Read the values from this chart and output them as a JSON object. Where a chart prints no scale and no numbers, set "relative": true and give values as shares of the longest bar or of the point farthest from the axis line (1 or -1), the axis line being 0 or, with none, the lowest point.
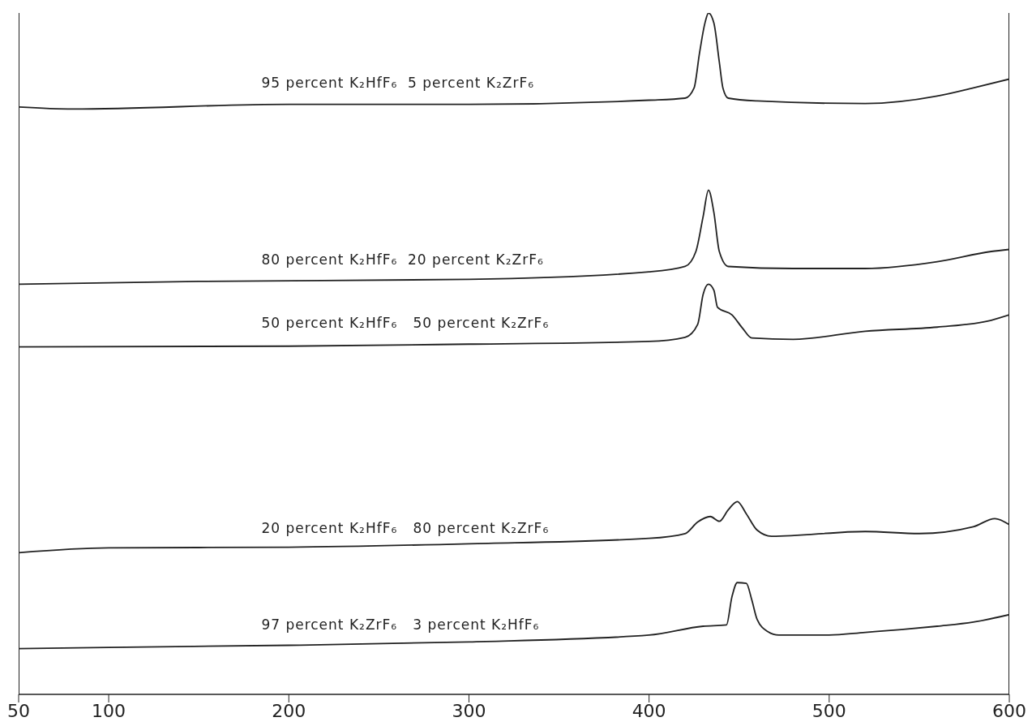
{
  "chart_data": {
    "type": "line",
    "relative": true,
    "xlim": [
      50,
      600
    ],
    "xticks": [
      50,
      100,
      200,
      300,
      400,
      500,
      600
    ],
    "marker": "none",
    "line_style": "solid",
    "series": [
      {
        "name": "95 percent K₂HfF₆  5 percent K₂ZrF₆",
        "color": "#222222",
        "x": [
          50,
          80,
          200,
          300,
          400,
          420,
          425,
          428,
          431,
          433,
          436,
          439,
          441,
          444,
          460,
          520,
          560,
          580,
          600
        ],
        "values": [
          0.862,
          0.859,
          0.866,
          0.866,
          0.872,
          0.875,
          0.89,
          0.941,
          0.985,
          1,
          0.985,
          0.928,
          0.89,
          0.875,
          0.871,
          0.867,
          0.878,
          0.89,
          0.903
        ]
      },
      {
        "name": "80 percent K₂HfF₆  20 percent K₂ZrF₆",
        "color": "#222222",
        "x": [
          50,
          150,
          300,
          400,
          420,
          426,
          430,
          433,
          436,
          439,
          444,
          480,
          520,
          560,
          590,
          600
        ],
        "values": [
          0.602,
          0.606,
          0.609,
          0.62,
          0.628,
          0.65,
          0.701,
          0.74,
          0.707,
          0.65,
          0.628,
          0.625,
          0.625,
          0.635,
          0.65,
          0.653
        ]
      },
      {
        "name": "50 percent K₂HfF₆   50 percent K₂ZrF₆",
        "color": "#222222",
        "x": [
          50,
          200,
          300,
          400,
          420,
          427,
          430,
          433,
          436,
          438,
          446,
          452,
          457,
          480,
          520,
          560,
          590,
          600
        ],
        "values": [
          0.51,
          0.511,
          0.514,
          0.518,
          0.524,
          0.543,
          0.587,
          0.602,
          0.593,
          0.568,
          0.557,
          0.537,
          0.523,
          0.521,
          0.533,
          0.539,
          0.549,
          0.557
        ]
      },
      {
        "name": "20 percent K₂HfF₆   80 percent K₂ZrF₆",
        "color": "#222222",
        "x": [
          50,
          100,
          200,
          300,
          400,
          420,
          427,
          434,
          439,
          444,
          449,
          454,
          460,
          468,
          520,
          550,
          580,
          592,
          600
        ],
        "values": [
          0.208,
          0.215,
          0.216,
          0.221,
          0.229,
          0.236,
          0.253,
          0.261,
          0.254,
          0.271,
          0.283,
          0.265,
          0.241,
          0.232,
          0.239,
          0.236,
          0.246,
          0.258,
          0.249
        ]
      },
      {
        "name": "97 percent K₂ZrF₆   3 percent K₂HfF₆",
        "color": "#222222",
        "x": [
          50,
          100,
          200,
          300,
          400,
          430,
          443,
          446,
          449,
          454,
          457,
          460,
          466,
          472,
          500,
          520,
          540,
          560,
          580,
          600
        ],
        "values": [
          0.067,
          0.069,
          0.072,
          0.077,
          0.087,
          0.1,
          0.102,
          0.143,
          0.164,
          0.163,
          0.139,
          0.11,
          0.092,
          0.087,
          0.087,
          0.091,
          0.095,
          0.1,
          0.106,
          0.117
        ]
      }
    ]
  }
}
